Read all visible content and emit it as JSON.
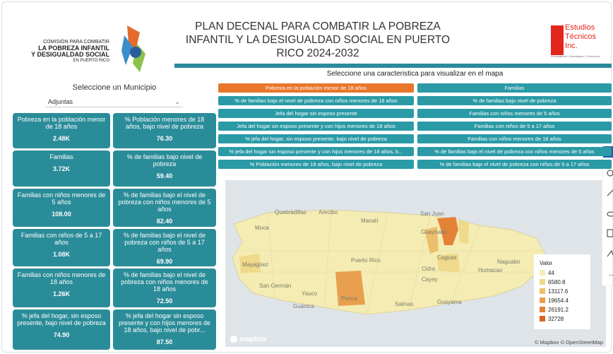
{
  "header": {
    "org_lines": [
      "COMISIÓN PARA COMBATIR",
      "LA POBREZA INFANTIL",
      "Y DESIGUALDAD SOCIAL",
      "EN PUERTO RICO"
    ],
    "title": "PLAN DECENAL PARA COMBATIR LA POBREZA INFANTIL Y LA DESIGUALDAD SOCIAL EN PUERTO RICO 2024-2032",
    "brand_lines": [
      "Estudios",
      "Técnicos",
      "Inc."
    ],
    "brand_tagline": "Investigación | Estrategias | Soluciones"
  },
  "municipio": {
    "label": "Seleccione un Municipio",
    "selected": "Adjuntas"
  },
  "cards": [
    {
      "label": "Pobreza en la población menor de 18 años",
      "value": "2.48K"
    },
    {
      "label": "% Población menores de 18 años, bajo nivel de pobreza",
      "value": "76.30"
    },
    {
      "label": "Familias",
      "value": "3.72K"
    },
    {
      "label": "% de familias bajo nivel de pobreza",
      "value": "59.40"
    },
    {
      "label": "Familias con niños menores de 5 años",
      "value": "108.00"
    },
    {
      "label": "% de familias bajo el nivel de pobreza con niños menores de 5 años",
      "value": "82.40"
    },
    {
      "label": "Familias con niños de 5 a 17 años",
      "value": "1.08K"
    },
    {
      "label": "% de familias bajo el nivel de pobreza con niños de 5 a 17 años",
      "value": "69.90"
    },
    {
      "label": "Familias con niños menores de 18 años",
      "value": "1.26K"
    },
    {
      "label": "% de familias bajo el nivel de pobreza con niños menores de 18 años",
      "value": "72.50"
    },
    {
      "label": "% jefa del hogar, sin esposo presente, bajo nivel de pobreza",
      "value": "74.90"
    },
    {
      "label": "% jefa del hogar sin esposo presente y con hijos menores de 18 años, bajo nivel de pobr...",
      "value": "87.50"
    }
  ],
  "selector": {
    "label": "Seleccione una caracteristica para visualizar en el mapa",
    "selected": 0,
    "buttons": [
      "Pobreza en la población menor de 18 años",
      "Familias",
      "% de familias bajo el nivel de pobreza con niños menores de 18 años",
      "% de familias bajo nivel de pobreza",
      "Jefa del hogar sin esposo presente",
      "Familias con niños menores de 5 años",
      "Jefa del hogar sin esposo presente y con hijos menores de 18 años",
      "Familias con niños de 5 a 17 años",
      "% jefa del hogar, sin esposo presente, bajo nivel de pobreza",
      "Familias con niños menores de 18 años",
      "% jefa del hogar sin esposo presente y con hijos menores de 18 años, b...",
      "% de familias bajo el nivel de pobreza con niños menores de 5 años",
      "% Población menores de 18 años, bajo nivel de pobreza",
      "% de familias bajo el nivel de pobreza con niños de 5 a 17 años"
    ]
  },
  "map": {
    "labels": [
      "Quebradillas",
      "Arecibo",
      "Manatí",
      "San Juan",
      "Guaynabo",
      "Moca",
      "Mayagüez",
      "Puerto Rico",
      "Cidra",
      "Caguas",
      "Humacao",
      "Naguabo",
      "San Germán",
      "Yauco",
      "Cayey",
      "Ponce",
      "Salinas",
      "Guayama",
      "Guánica"
    ],
    "legend_title": "Valor",
    "legend": [
      {
        "label": "44",
        "color": "#f4efb4"
      },
      {
        "label": "6580.8",
        "color": "#efd98a"
      },
      {
        "label": "13117.6",
        "color": "#ecbf6c"
      },
      {
        "label": "19654.4",
        "color": "#e8a04e"
      },
      {
        "label": "26191.2",
        "color": "#e38338"
      },
      {
        "label": "32728",
        "color": "#d6661f"
      }
    ],
    "logo": "mapbox",
    "attribution": "© Mapbox © OpenStreetMap"
  }
}
